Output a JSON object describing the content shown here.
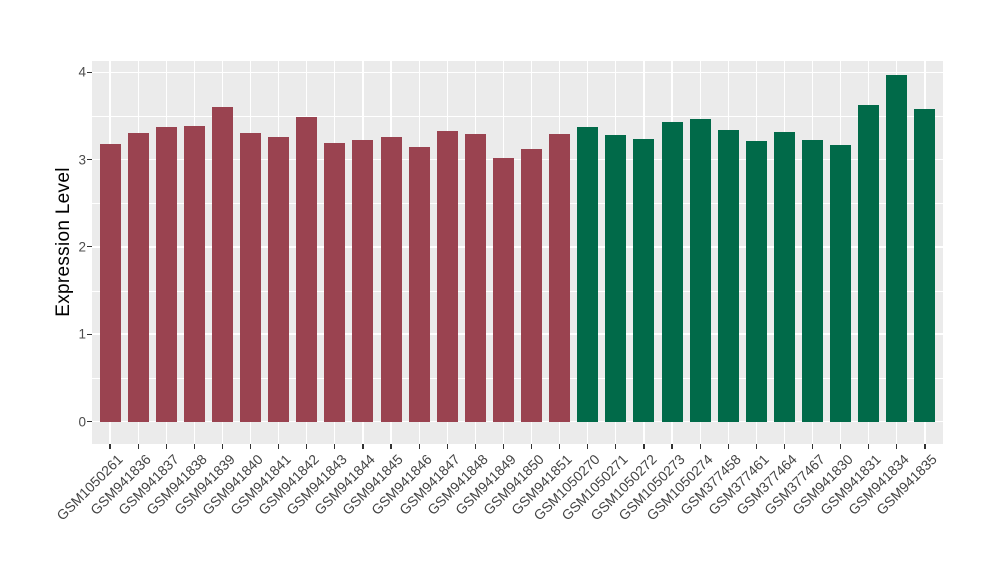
{
  "figure": {
    "background": "#FFFFFF",
    "panel_bg": "#EBEBEB",
    "grid_color": "#FFFFFF",
    "tick_color": "#333333",
    "axis_text_color": "#4D4D4D",
    "axis_title_color": "#000000"
  },
  "chart_data": {
    "type": "bar",
    "title": "",
    "xlabel": "",
    "ylabel": "Expression Level",
    "ylim": [
      0,
      4.15
    ],
    "yticks": [
      0,
      1,
      2,
      3,
      4
    ],
    "yticks_minor": [
      0.5,
      1.5,
      2.5,
      3.5
    ],
    "grid": "white major+minor horizontal lines and white vertical lines at each category on grey panel (ggplot theme_grey style)",
    "legend_position": "none",
    "x_tick_rotation_deg": 45,
    "group_colors": {
      "group1_dark_red": "#9A4350",
      "group2_dark_green": "#016A49"
    },
    "group_split_index": 17,
    "categories": [
      "GSM1050261",
      "GSM941836",
      "GSM941837",
      "GSM941838",
      "GSM941839",
      "GSM941840",
      "GSM941841",
      "GSM941842",
      "GSM941843",
      "GSM941844",
      "GSM941845",
      "GSM941846",
      "GSM941847",
      "GSM941848",
      "GSM941849",
      "GSM941850",
      "GSM941851",
      "GSM1050270",
      "GSM1050271",
      "GSM1050272",
      "GSM1050273",
      "GSM1050274",
      "GSM377458",
      "GSM377461",
      "GSM377464",
      "GSM377467",
      "GSM941830",
      "GSM941831",
      "GSM941834",
      "GSM941835"
    ],
    "values": [
      3.18,
      3.31,
      3.37,
      3.39,
      3.6,
      3.3,
      3.26,
      3.49,
      3.19,
      3.22,
      3.26,
      3.15,
      3.33,
      3.29,
      3.02,
      3.12,
      3.29,
      3.37,
      3.28,
      3.24,
      3.43,
      3.46,
      3.34,
      3.21,
      3.32,
      3.23,
      3.17,
      3.63,
      3.97,
      3.58
    ],
    "colors": [
      "#9A4350",
      "#9A4350",
      "#9A4350",
      "#9A4350",
      "#9A4350",
      "#9A4350",
      "#9A4350",
      "#9A4350",
      "#9A4350",
      "#9A4350",
      "#9A4350",
      "#9A4350",
      "#9A4350",
      "#9A4350",
      "#9A4350",
      "#9A4350",
      "#9A4350",
      "#016A49",
      "#016A49",
      "#016A49",
      "#016A49",
      "#016A49",
      "#016A49",
      "#016A49",
      "#016A49",
      "#016A49",
      "#016A49",
      "#016A49",
      "#016A49",
      "#016A49"
    ]
  }
}
